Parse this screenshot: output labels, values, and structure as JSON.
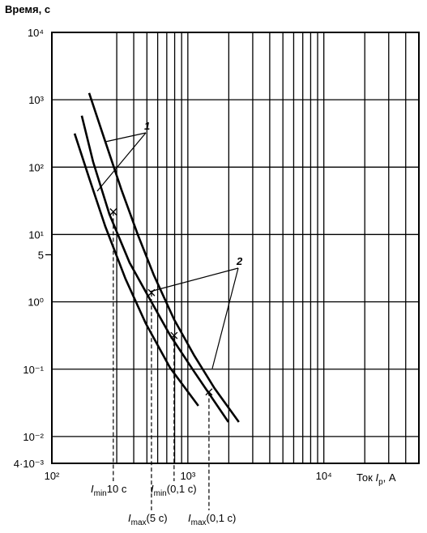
{
  "chart_data": {
    "type": "line",
    "title": "Время, с",
    "x_label": {
      "prefix": "Ток ",
      "main": "I",
      "sub": "р",
      "suffix": ", А"
    },
    "log_x": true,
    "log_y": true,
    "grid": true,
    "xlim": [
      100,
      50000
    ],
    "ylim": [
      0.004,
      10000
    ],
    "xticks": [
      {
        "value": 100,
        "label": "10²"
      },
      {
        "value": 1000,
        "label": "10³"
      },
      {
        "value": 10000,
        "label": "10⁴"
      }
    ],
    "yticks": [
      {
        "value": 0.004,
        "label": "4·10⁻³"
      },
      {
        "value": 0.01,
        "label": "10⁻²"
      },
      {
        "value": 0.1,
        "label": "10⁻¹"
      },
      {
        "value": 1,
        "label": "10⁰"
      },
      5,
      {
        "value": 10,
        "label": "10¹"
      },
      {
        "value": 100,
        "label": "10²"
      },
      {
        "value": 1000,
        "label": "10³"
      },
      {
        "value": 10000,
        "label": "10⁴"
      }
    ],
    "x_grid": [
      300,
      400,
      500,
      600,
      700,
      800,
      900,
      2000,
      3000,
      4000,
      5000,
      6000,
      7000,
      8000,
      9000,
      20000,
      30000,
      40000
    ],
    "series": [
      {
        "color": "#000000",
        "x": [
          188,
          247,
          325,
          428,
          562,
          792,
          1117,
          1571,
          2371
        ],
        "values": [
          1259,
          240,
          46,
          10,
          2.5,
          0.55,
          0.158,
          0.052,
          0.0164
        ]
      },
      {
        "color": "#000000",
        "x": [
          166,
          201,
          265,
          373,
          525,
          740,
          1117,
          1986
        ],
        "values": [
          581,
          120,
          20,
          3.8,
          1.1,
          0.32,
          0.091,
          0.0164
        ]
      },
      {
        "color": "#000000",
        "x": [
          147,
          188,
          247,
          348,
          490,
          740,
          1194
        ],
        "values": [
          316,
          69,
          13.2,
          2.19,
          0.48,
          0.105,
          0.0286
        ]
      }
    ],
    "annotations": [
      {
        "text": "1"
      },
      {
        "text": "2"
      }
    ],
    "markers": [
      {
        "main": "I",
        "sub": "min",
        "suffix": "10 с",
        "x": 283,
        "y": 21.7
      },
      {
        "main": "I",
        "sub": "max",
        "suffix": "(5 с)",
        "x": 540,
        "y": 1.37
      },
      {
        "main": "I",
        "sub": "min",
        "suffix": "(0,1 с)",
        "x": 792,
        "y": 0.316
      },
      {
        "main": "I",
        "sub": "max",
        "suffix": "(0,1 с)",
        "x": 1430,
        "y": 0.046
      }
    ]
  }
}
